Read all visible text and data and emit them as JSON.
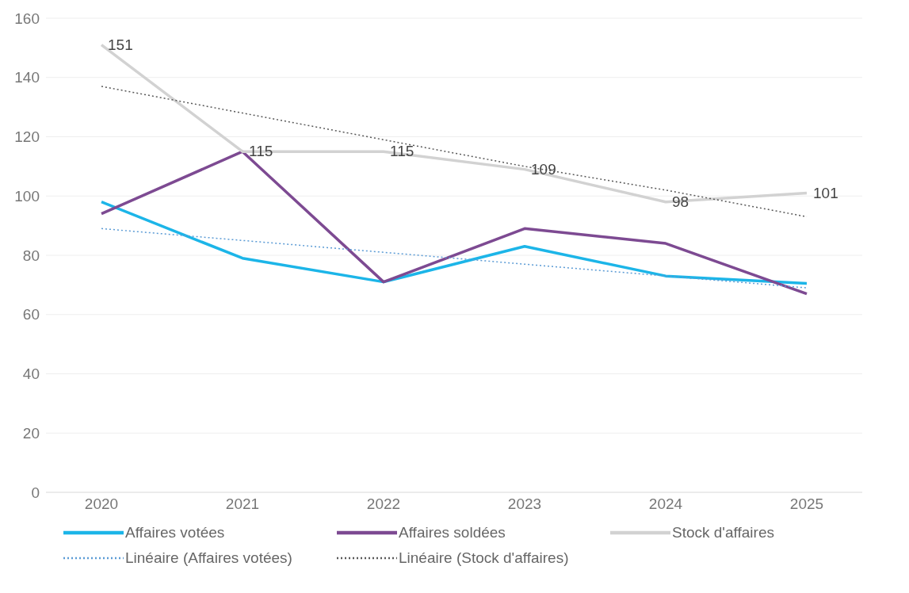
{
  "chart_data": {
    "type": "line",
    "categories": [
      "2020",
      "2021",
      "2022",
      "2023",
      "2024",
      "2025"
    ],
    "ylim": [
      0,
      160
    ],
    "yticks": [
      0,
      20,
      40,
      60,
      80,
      100,
      120,
      140,
      160
    ],
    "grid": "y",
    "legend": "bottom",
    "marker": "none",
    "series": [
      {
        "name": "Affaires votées",
        "color": "#1cb5e8",
        "values": [
          98,
          79,
          71,
          83,
          73,
          70.5
        ],
        "line_style": "solid"
      },
      {
        "name": "Affaires soldées",
        "color": "#7d4a92",
        "values": [
          94,
          115,
          71,
          89,
          84,
          67
        ],
        "line_style": "solid"
      },
      {
        "name": "Stock d'affaires",
        "color": "#d2d2d2",
        "values": [
          151,
          115,
          115,
          109,
          98,
          101
        ],
        "line_style": "solid",
        "value_labels": [
          "151",
          "115",
          "115",
          "109",
          "98",
          "101"
        ]
      },
      {
        "name": "Linéaire (Affaires votées)",
        "color": "#5b9bd5",
        "values": [
          89,
          85,
          81,
          77,
          73,
          69
        ],
        "line_style": "dotted"
      },
      {
        "name": "Linéaire (Stock d'affaires)",
        "color": "#595959",
        "values": [
          137,
          128,
          119,
          110,
          102,
          93
        ],
        "line_style": "dotted"
      }
    ]
  }
}
